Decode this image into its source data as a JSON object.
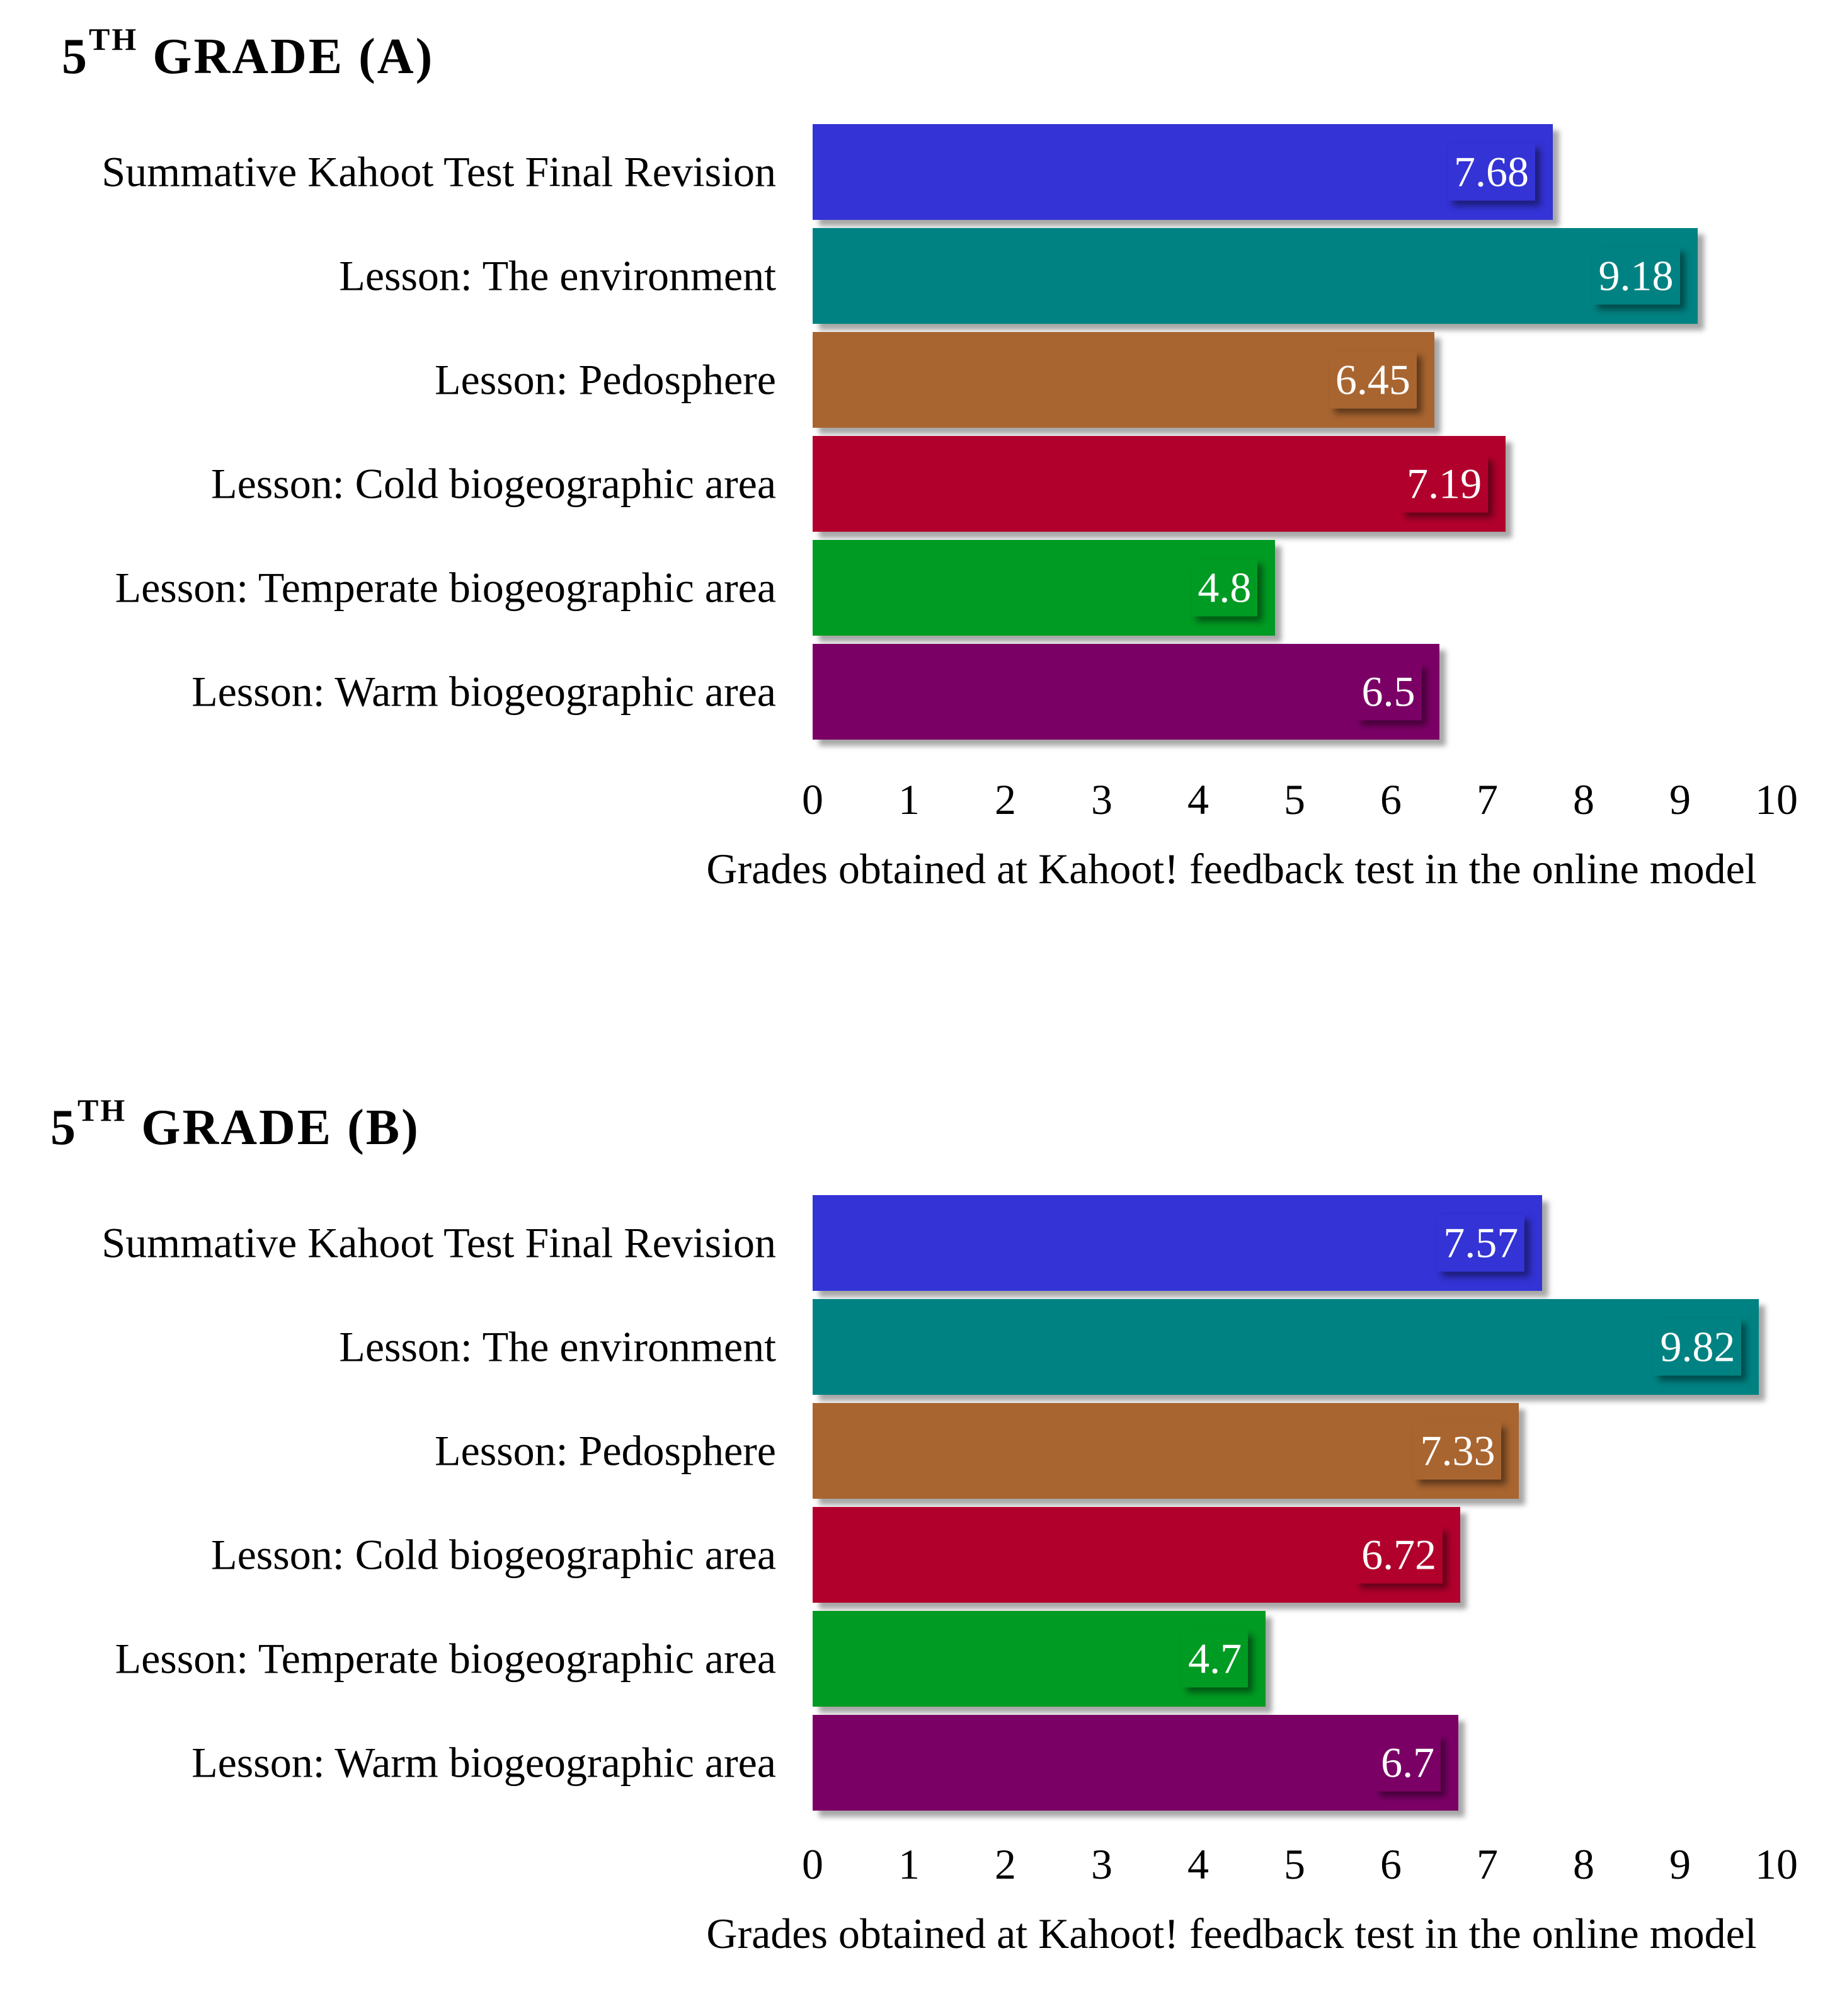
{
  "colors": [
    "#3333d6",
    "#008282",
    "#a96530",
    "#b2002c",
    "#009b22",
    "#7b0066"
  ],
  "chart_data": [
    {
      "type": "bar",
      "orientation": "horizontal",
      "title_main": "5",
      "title_sup": "TH",
      "title_rest": " GRADE (A)",
      "categories": [
        "Summative Kahoot Test Final Revision",
        "Lesson: The environment",
        "Lesson: Pedosphere",
        "Lesson: Cold biogeographic area",
        "Lesson: Temperate biogeographic area",
        "Lesson: Warm biogeographic area"
      ],
      "values": [
        7.68,
        9.18,
        6.45,
        7.19,
        4.8,
        6.5
      ],
      "xlim": [
        0,
        10
      ],
      "xticks": [
        "0",
        "1",
        "2",
        "3",
        "4",
        "5",
        "6",
        "7",
        "8",
        "9",
        "10"
      ],
      "xlabel": "Grades obtained at Kahoot! feedback test in the online model",
      "ylabel": "",
      "grid": false
    },
    {
      "type": "bar",
      "orientation": "horizontal",
      "title_main": "5",
      "title_sup": "TH",
      "title_rest": " GRADE (B)",
      "categories": [
        "Summative Kahoot Test Final Revision",
        "Lesson: The environment",
        "Lesson: Pedosphere",
        "Lesson: Cold biogeographic area",
        "Lesson: Temperate biogeographic area",
        "Lesson: Warm biogeographic area"
      ],
      "values": [
        7.57,
        9.82,
        7.33,
        6.72,
        4.7,
        6.7
      ],
      "xlim": [
        0,
        10
      ],
      "xticks": [
        "0",
        "1",
        "2",
        "3",
        "4",
        "5",
        "6",
        "7",
        "8",
        "9",
        "10"
      ],
      "xlabel": "Grades obtained at Kahoot! feedback test in the online model",
      "ylabel": "",
      "grid": false
    }
  ]
}
